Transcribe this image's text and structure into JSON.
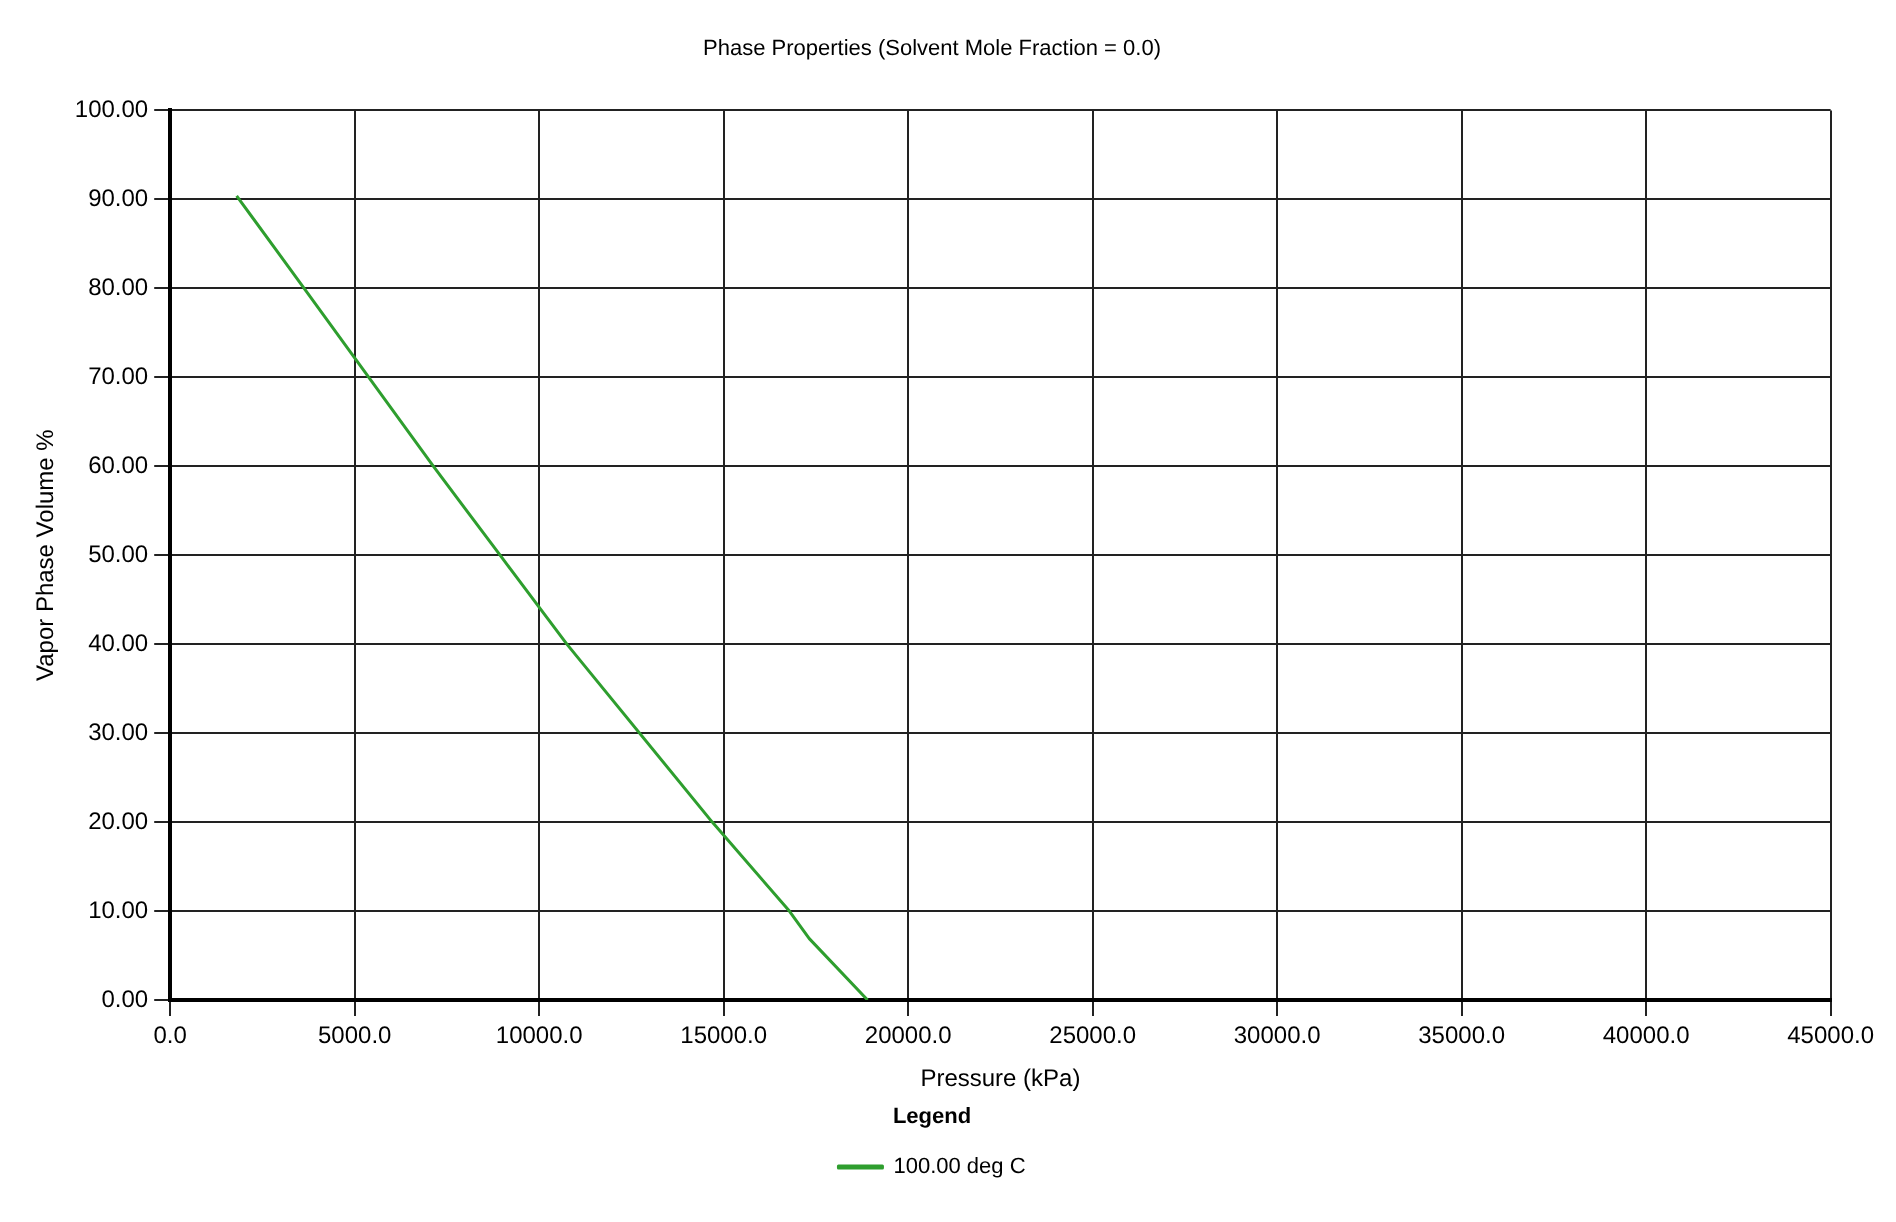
{
  "chart_data": {
    "type": "line",
    "title": "Phase Properties (Solvent Mole Fraction = 0.0)",
    "xlabel": "Pressure (kPa)",
    "ylabel": "Vapor Phase Volume %",
    "legend_title": "Legend",
    "legend": "bottom",
    "grid": true,
    "marker": "none",
    "line_style": "solid",
    "xlim": [
      0,
      45000
    ],
    "ylim": [
      0,
      100
    ],
    "xticks": [
      {
        "value": 0,
        "label": "0.0"
      },
      {
        "value": 5000,
        "label": "5000.0"
      },
      {
        "value": 10000,
        "label": "10000.0"
      },
      {
        "value": 15000,
        "label": "15000.0"
      },
      {
        "value": 20000,
        "label": "20000.0"
      },
      {
        "value": 25000,
        "label": "25000.0"
      },
      {
        "value": 30000,
        "label": "30000.0"
      },
      {
        "value": 35000,
        "label": "35000.0"
      },
      {
        "value": 40000,
        "label": "40000.0"
      },
      {
        "value": 45000,
        "label": "45000.0"
      }
    ],
    "yticks": [
      {
        "value": 0,
        "label": "0.00"
      },
      {
        "value": 10,
        "label": "10.00"
      },
      {
        "value": 20,
        "label": "20.00"
      },
      {
        "value": 30,
        "label": "30.00"
      },
      {
        "value": 40,
        "label": "40.00"
      },
      {
        "value": 50,
        "label": "50.00"
      },
      {
        "value": 60,
        "label": "60.00"
      },
      {
        "value": 70,
        "label": "70.00"
      },
      {
        "value": 80,
        "label": "80.00"
      },
      {
        "value": 90,
        "label": "90.00"
      },
      {
        "value": 100,
        "label": "100.00"
      }
    ],
    "series": [
      {
        "name": "100.00 deg C",
        "color": "#2e9e2e",
        "x": [
          1800,
          3630,
          7130,
          8940,
          10750,
          14690,
          16780,
          17320,
          18900
        ],
        "values": [
          90.4,
          80,
          60,
          50,
          40,
          20,
          10,
          6.9,
          0
        ]
      }
    ]
  }
}
